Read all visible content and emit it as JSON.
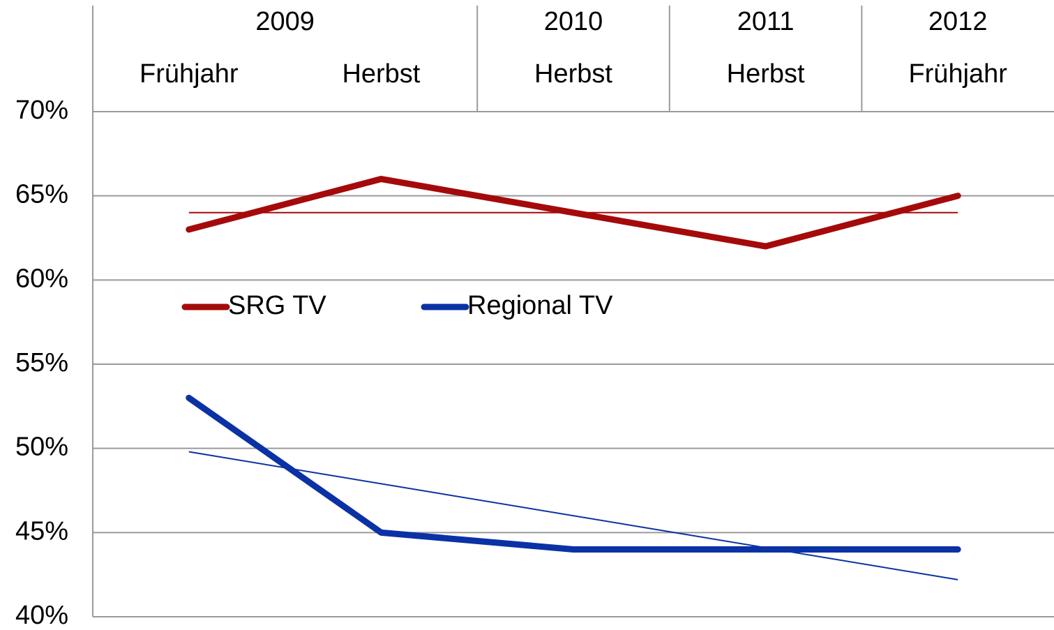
{
  "chart_data": {
    "type": "line",
    "categories": [
      "Frühjahr",
      "Herbst",
      "Herbst",
      "Herbst",
      "Frühjahr"
    ],
    "groups": [
      {
        "label": "2009",
        "count": 2
      },
      {
        "label": "2010",
        "count": 1
      },
      {
        "label": "2011",
        "count": 1
      },
      {
        "label": "2012",
        "count": 1
      }
    ],
    "series": [
      {
        "name": "SRG TV",
        "color": "#a50a0a",
        "values": [
          63,
          66,
          64,
          62,
          65
        ]
      },
      {
        "name": "Regional TV",
        "color": "#0a32a5",
        "values": [
          53,
          45,
          44,
          44,
          44
        ]
      }
    ],
    "ylim": [
      40,
      70
    ],
    "yticks": [
      {
        "value": 40,
        "label": "40%"
      },
      {
        "value": 45,
        "label": "45%"
      },
      {
        "value": 50,
        "label": "50%"
      },
      {
        "value": 55,
        "label": "55%"
      },
      {
        "value": 60,
        "label": "60%"
      },
      {
        "value": 65,
        "label": "65%"
      },
      {
        "value": 70,
        "label": "70%"
      }
    ],
    "grid": true,
    "trendline": "linear",
    "legend": "inside-top-left"
  }
}
